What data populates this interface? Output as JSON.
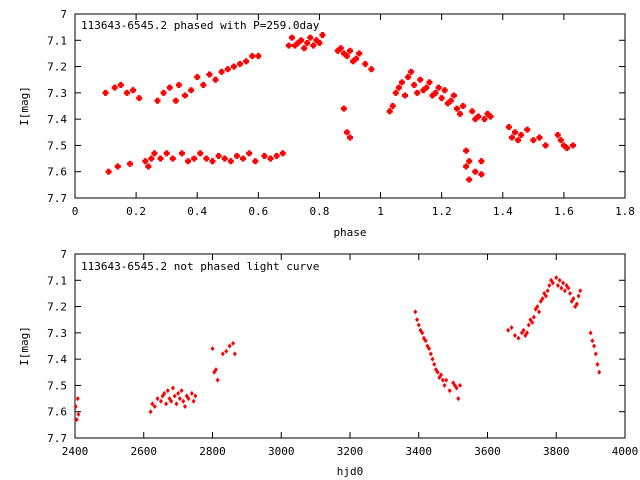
{
  "chart_data": [
    {
      "type": "scatter",
      "title": "113643-6545.2 phased with P=259.0day",
      "xlabel": "phase",
      "ylabel": "I[mag]",
      "xlim": [
        0,
        1.8
      ],
      "ylim": [
        7.7,
        7.0
      ],
      "y_inverted": true,
      "grid": false,
      "xticks": [
        "0",
        "0.2",
        "0.4",
        "0.6",
        "0.8",
        "1",
        "1.2",
        "1.4",
        "1.6",
        "1.8"
      ],
      "yticks": [
        "7",
        "7.1",
        "7.2",
        "7.3",
        "7.4",
        "7.5",
        "7.6",
        "7.7"
      ],
      "marker_color": "#ff0000",
      "marker": "cross",
      "series": [
        {
          "x": [
            0.1,
            0.11,
            0.13,
            0.14,
            0.15,
            0.17,
            0.18,
            0.19,
            0.21,
            0.23,
            0.24,
            0.25,
            0.26,
            0.27,
            0.28,
            0.29,
            0.3,
            0.31,
            0.32,
            0.33,
            0.34,
            0.35,
            0.36,
            0.37,
            0.38,
            0.39,
            0.4,
            0.41,
            0.42,
            0.43,
            0.44,
            0.45,
            0.46,
            0.47,
            0.48,
            0.49,
            0.5,
            0.51,
            0.52,
            0.53,
            0.54,
            0.55,
            0.56,
            0.57,
            0.58,
            0.59,
            0.6,
            0.62,
            0.64,
            0.66,
            0.68,
            0.7,
            0.71,
            0.72,
            0.73,
            0.74,
            0.75,
            0.76,
            0.77,
            0.78,
            0.79,
            0.8,
            0.81,
            0.86,
            0.87,
            0.88,
            0.89,
            0.9,
            0.91,
            0.92,
            0.93,
            0.95,
            0.97,
            0.88,
            0.89,
            0.9,
            1.03,
            1.04,
            1.05,
            1.06,
            1.07,
            1.08,
            1.09,
            1.1,
            1.11,
            1.12,
            1.13,
            1.14,
            1.15,
            1.16,
            1.17,
            1.18,
            1.19,
            1.2,
            1.21,
            1.22,
            1.23,
            1.24,
            1.25,
            1.26,
            1.27,
            1.28,
            1.29,
            1.3,
            1.31,
            1.32,
            1.33,
            1.34,
            1.35,
            1.36,
            1.42,
            1.43,
            1.44,
            1.45,
            1.46,
            1.48,
            1.5,
            1.52,
            1.54,
            1.58,
            1.59,
            1.6,
            1.61,
            1.63,
            1.28,
            1.29,
            1.31,
            1.33
          ],
          "y": [
            7.3,
            7.6,
            7.28,
            7.58,
            7.27,
            7.3,
            7.57,
            7.29,
            7.32,
            7.56,
            7.58,
            7.55,
            7.53,
            7.33,
            7.55,
            7.3,
            7.53,
            7.28,
            7.55,
            7.33,
            7.27,
            7.53,
            7.31,
            7.56,
            7.29,
            7.55,
            7.24,
            7.53,
            7.27,
            7.55,
            7.23,
            7.56,
            7.25,
            7.54,
            7.22,
            7.55,
            7.21,
            7.56,
            7.2,
            7.54,
            7.19,
            7.55,
            7.18,
            7.53,
            7.16,
            7.56,
            7.16,
            7.54,
            7.55,
            7.54,
            7.53,
            7.12,
            7.09,
            7.12,
            7.11,
            7.1,
            7.13,
            7.11,
            7.09,
            7.12,
            7.1,
            7.11,
            7.08,
            7.14,
            7.13,
            7.15,
            7.16,
            7.14,
            7.18,
            7.17,
            7.15,
            7.19,
            7.21,
            7.36,
            7.45,
            7.47,
            7.37,
            7.35,
            7.3,
            7.28,
            7.26,
            7.31,
            7.24,
            7.22,
            7.27,
            7.3,
            7.25,
            7.29,
            7.28,
            7.26,
            7.31,
            7.3,
            7.28,
            7.32,
            7.29,
            7.34,
            7.33,
            7.31,
            7.36,
            7.38,
            7.35,
            7.58,
            7.63,
            7.37,
            7.4,
            7.39,
            7.61,
            7.4,
            7.38,
            7.39,
            7.43,
            7.47,
            7.45,
            7.48,
            7.46,
            7.44,
            7.48,
            7.47,
            7.5,
            7.46,
            7.48,
            7.5,
            7.51,
            7.5,
            7.52,
            7.56,
            7.6,
            7.56
          ]
        }
      ]
    },
    {
      "type": "scatter",
      "title": "113643-6545.2 not phased light curve",
      "xlabel": "hjd0",
      "ylabel": "I[mag]",
      "xlim": [
        2400,
        4000
      ],
      "ylim": [
        7.7,
        7.0
      ],
      "y_inverted": true,
      "grid": false,
      "xticks": [
        "2400",
        "2600",
        "2800",
        "3000",
        "3200",
        "3400",
        "3600",
        "3800",
        "4000"
      ],
      "yticks": [
        "7",
        "7.1",
        "7.2",
        "7.3",
        "7.4",
        "7.5",
        "7.6",
        "7.7"
      ],
      "marker_color": "#ff0000",
      "marker": "diamond",
      "series": [
        {
          "x": [
            2402,
            2405,
            2408,
            2410,
            2620,
            2625,
            2632,
            2640,
            2650,
            2655,
            2660,
            2665,
            2670,
            2675,
            2680,
            2685,
            2690,
            2695,
            2700,
            2705,
            2710,
            2715,
            2720,
            2725,
            2730,
            2740,
            2745,
            2750,
            2800,
            2805,
            2810,
            2815,
            2830,
            2840,
            2850,
            2860,
            2865,
            3390,
            3395,
            3400,
            3405,
            3410,
            3415,
            3420,
            3425,
            3430,
            3435,
            3440,
            3445,
            3450,
            3455,
            3460,
            3465,
            3470,
            3475,
            3480,
            3490,
            3500,
            3505,
            3510,
            3515,
            3520,
            3660,
            3670,
            3680,
            3690,
            3700,
            3705,
            3710,
            3715,
            3720,
            3725,
            3730,
            3735,
            3740,
            3745,
            3750,
            3755,
            3760,
            3765,
            3770,
            3775,
            3780,
            3785,
            3790,
            3800,
            3805,
            3810,
            3815,
            3820,
            3825,
            3830,
            3835,
            3840,
            3845,
            3850,
            3855,
            3860,
            3865,
            3870,
            3900,
            3905,
            3910,
            3915,
            3920,
            3925
          ],
          "y": [
            7.58,
            7.63,
            7.55,
            7.61,
            7.6,
            7.57,
            7.58,
            7.55,
            7.56,
            7.54,
            7.53,
            7.57,
            7.52,
            7.55,
            7.56,
            7.51,
            7.54,
            7.57,
            7.53,
            7.55,
            7.52,
            7.56,
            7.58,
            7.54,
            7.55,
            7.53,
            7.56,
            7.54,
            7.36,
            7.45,
            7.44,
            7.48,
            7.38,
            7.37,
            7.35,
            7.34,
            7.38,
            7.22,
            7.25,
            7.27,
            7.29,
            7.3,
            7.32,
            7.33,
            7.35,
            7.36,
            7.38,
            7.4,
            7.42,
            7.44,
            7.45,
            7.47,
            7.46,
            7.48,
            7.5,
            7.48,
            7.52,
            7.49,
            7.5,
            7.51,
            7.55,
            7.5,
            7.29,
            7.28,
            7.31,
            7.32,
            7.3,
            7.29,
            7.31,
            7.3,
            7.27,
            7.25,
            7.26,
            7.24,
            7.21,
            7.2,
            7.22,
            7.18,
            7.17,
            7.15,
            7.16,
            7.14,
            7.12,
            7.1,
            7.11,
            7.09,
            7.12,
            7.1,
            7.13,
            7.11,
            7.14,
            7.12,
            7.13,
            7.15,
            7.18,
            7.17,
            7.2,
            7.19,
            7.16,
            7.14,
            7.3,
            7.33,
            7.35,
            7.38,
            7.42,
            7.45
          ]
        }
      ]
    }
  ]
}
